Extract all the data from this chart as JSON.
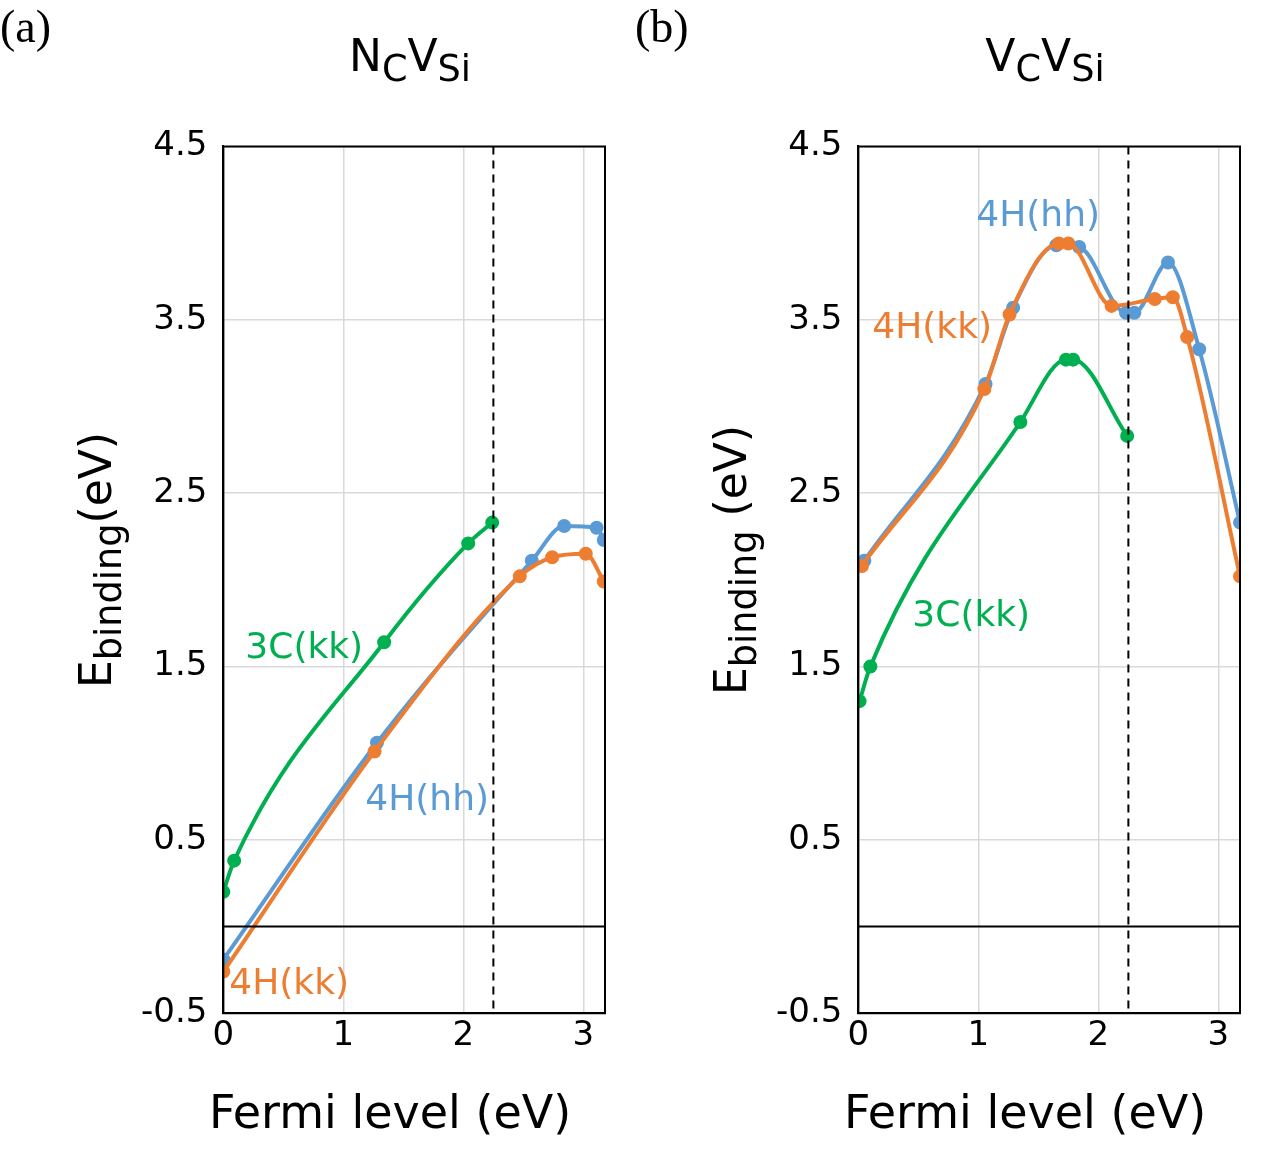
{
  "chart_data": [
    {
      "type": "line",
      "title": "N$_{C}$V$_{Si}$",
      "xlabel": "Fermi level (eV)",
      "ylabel": "E$_{binding}$(eV)",
      "annotations": [
        "(a)"
      ],
      "xlim": [
        0,
        3.18
      ],
      "xticks": [
        0,
        1,
        2,
        3
      ],
      "ylim": [
        -0.5,
        4.5
      ],
      "yticks": [
        -0.5,
        0.5,
        1.5,
        2.5,
        3.5,
        4.5
      ],
      "grid": true,
      "legend": false,
      "marker": "circle",
      "line_style": "solid",
      "ref_lines": [
        {
          "axis": "y",
          "value": 0,
          "color": "#000000",
          "line_style": "solid"
        },
        {
          "axis": "x",
          "value": 2.25,
          "color": "#000000",
          "line_style": "dashed"
        }
      ],
      "series": [
        {
          "name": "4H(hh)",
          "color": "#5b9bd5",
          "x": [
            0,
            1.28,
            2.57,
            2.84,
            3.11,
            3.17
          ],
          "values": [
            -0.19,
            1.06,
            2.11,
            2.31,
            2.3,
            2.23
          ]
        },
        {
          "name": "4H(kk)",
          "color": "#ed7d31",
          "x": [
            0,
            1.26,
            2.47,
            2.74,
            3.02,
            3.17
          ],
          "values": [
            -0.26,
            1.01,
            2.02,
            2.13,
            2.15,
            1.99
          ]
        },
        {
          "name": "3C(kk)",
          "color": "#00b050",
          "x": [
            0,
            0.09,
            1.34,
            2.04,
            2.24
          ],
          "values": [
            0.2,
            0.38,
            1.64,
            2.21,
            2.33
          ]
        }
      ]
    },
    {
      "type": "line",
      "title": "V$_{C}$V$_{Si}$",
      "xlabel": "Fermi level (eV)",
      "ylabel": "E$_{binding}$ (eV)",
      "annotations": [
        "(b)"
      ],
      "xlim": [
        0,
        3.18
      ],
      "xticks": [
        0,
        1,
        2,
        3
      ],
      "ylim": [
        -0.5,
        4.5
      ],
      "yticks": [
        -0.5,
        0.5,
        1.5,
        2.5,
        3.5,
        4.5
      ],
      "grid": true,
      "legend": false,
      "marker": "circle",
      "line_style": "solid",
      "ref_lines": [
        {
          "axis": "y",
          "value": 0,
          "color": "#000000",
          "line_style": "solid"
        },
        {
          "axis": "x",
          "value": 2.25,
          "color": "#000000",
          "line_style": "dashed"
        }
      ],
      "series": [
        {
          "name": "4H(hh)",
          "color": "#5b9bd5",
          "x": [
            0.05,
            1.06,
            1.29,
            1.65,
            1.84,
            2.23,
            2.3,
            2.58,
            2.84,
            3.18
          ],
          "values": [
            2.11,
            3.13,
            3.57,
            3.93,
            3.92,
            3.54,
            3.54,
            3.83,
            3.33,
            2.33
          ]
        },
        {
          "name": "4H(kk)",
          "color": "#ed7d31",
          "x": [
            0.03,
            1.05,
            1.26,
            1.67,
            1.75,
            2.11,
            2.47,
            2.62,
            2.74,
            3.18
          ],
          "values": [
            2.08,
            3.1,
            3.53,
            3.94,
            3.94,
            3.58,
            3.62,
            3.63,
            3.4,
            2.02
          ]
        },
        {
          "name": "3C(kk)",
          "color": "#00b050",
          "x": [
            0.01,
            0.1,
            1.35,
            1.73,
            1.79,
            2.24
          ],
          "values": [
            1.3,
            1.5,
            2.91,
            3.27,
            3.27,
            2.83
          ]
        }
      ]
    }
  ]
}
